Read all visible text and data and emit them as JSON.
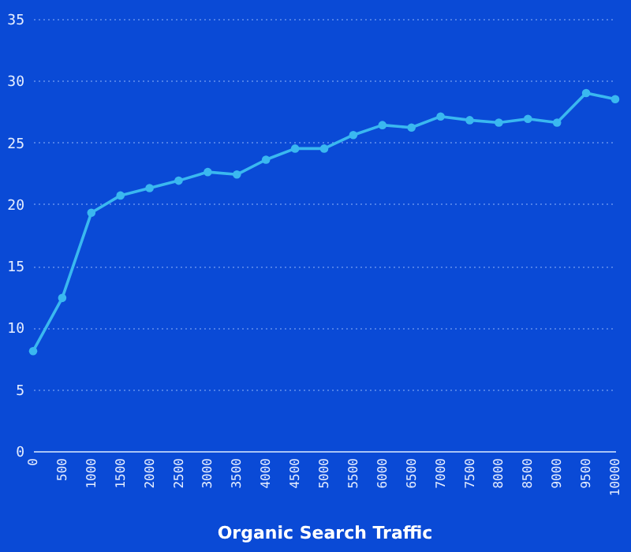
{
  "chart_data": {
    "type": "line",
    "xlabel": "Organic Search Traffic",
    "x": [
      0,
      500,
      1000,
      1500,
      2000,
      2500,
      3000,
      3500,
      4000,
      4500,
      5000,
      5500,
      6000,
      6500,
      7000,
      7500,
      8000,
      8500,
      9000,
      9500,
      10000
    ],
    "series": [
      {
        "color": "#3ab8f0",
        "values": [
          8.1,
          12.4,
          19.3,
          20.7,
          21.3,
          21.9,
          22.6,
          22.4,
          23.6,
          24.5,
          24.5,
          25.6,
          26.4,
          26.2,
          27.1,
          26.8,
          26.6,
          26.9,
          26.6,
          29.0,
          28.5
        ]
      }
    ],
    "xlim": [
      0,
      10000
    ],
    "xticks": [
      0,
      500,
      1000,
      1500,
      2000,
      2500,
      3000,
      3500,
      4000,
      4500,
      5000,
      5500,
      6000,
      6500,
      7000,
      7500,
      8000,
      8500,
      9000,
      9500,
      10000
    ],
    "ylim": [
      0,
      35
    ],
    "yticks": [
      0,
      5,
      10,
      15,
      20,
      25,
      30,
      35
    ],
    "grid": "y",
    "marker": "circle",
    "line_style": "solid",
    "legend": false
  }
}
